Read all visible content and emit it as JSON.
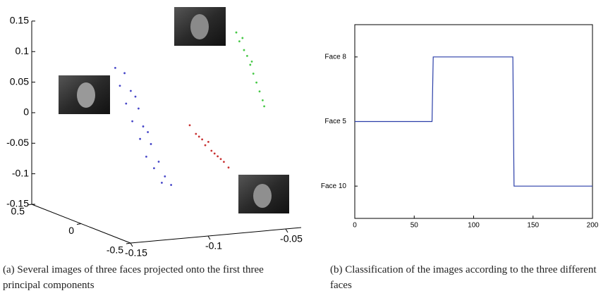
{
  "chart_data": [
    {
      "type": "scatter3d",
      "xlim": [
        -0.15,
        -0.04
      ],
      "xticks": [
        -0.15,
        -0.1,
        -0.05
      ],
      "ylim": [
        -0.5,
        0.5
      ],
      "yticks": [
        -0.5,
        0,
        0.5
      ],
      "zlim": [
        -0.15,
        0.15
      ],
      "zticks": [
        -0.15,
        -0.1,
        -0.05,
        0,
        0.05,
        0.1,
        0.15
      ],
      "series": [
        {
          "color": "#4646c8",
          "x": [
            -0.128,
            -0.122,
            -0.125,
            -0.118,
            -0.121,
            -0.113,
            -0.117,
            -0.11,
            -0.112,
            -0.105,
            -0.108,
            -0.1,
            -0.103,
            -0.096,
            -0.092,
            -0.098,
            -0.115,
            -0.107
          ],
          "y": [
            0,
            0,
            0,
            0,
            0,
            0,
            0,
            0,
            0,
            0,
            0,
            0,
            0,
            0,
            0,
            0,
            0,
            0
          ],
          "z": [
            0.1,
            0.09,
            0.07,
            0.06,
            0.04,
            0.03,
            0.01,
            0,
            -0.02,
            -0.03,
            -0.05,
            -0.06,
            -0.07,
            -0.085,
            -0.1,
            -0.095,
            0.05,
            -0.01
          ]
        },
        {
          "color": "#c83232",
          "x": [
            -0.08,
            -0.076,
            -0.072,
            -0.07,
            -0.066,
            -0.064,
            -0.06,
            -0.058,
            -0.055,
            -0.068,
            -0.062,
            -0.074
          ],
          "y": [
            0,
            0,
            0,
            0,
            0,
            0,
            0,
            0,
            0,
            0,
            0,
            0
          ],
          "z": [
            -0.005,
            -0.02,
            -0.03,
            -0.04,
            -0.05,
            -0.055,
            -0.065,
            -0.07,
            -0.08,
            -0.035,
            -0.06,
            -0.025
          ]
        },
        {
          "color": "#46c846",
          "x": [
            -0.05,
            -0.048,
            -0.045,
            -0.043,
            -0.041,
            -0.039,
            -0.037,
            -0.035,
            -0.033,
            -0.032,
            -0.046,
            -0.04
          ],
          "y": [
            0,
            0,
            0,
            0,
            0,
            0,
            0,
            0,
            0,
            0,
            0,
            0
          ],
          "z": [
            0.14,
            0.125,
            0.11,
            0.1,
            0.085,
            0.07,
            0.055,
            0.04,
            0.025,
            0.015,
            0.13,
            0.09
          ]
        }
      ]
    },
    {
      "type": "line",
      "x": [
        0,
        65,
        66,
        133,
        134,
        200
      ],
      "series": [
        {
          "color": "#2b3fa8",
          "values": [
            2,
            2,
            3,
            3,
            1,
            1
          ]
        }
      ],
      "xlim": [
        0,
        200
      ],
      "xticks": [
        0,
        50,
        100,
        150,
        200
      ],
      "ylim": [
        0.5,
        3.5
      ],
      "yticks": [
        {
          "value": 1,
          "label": "Face 10"
        },
        {
          "value": 2,
          "label": "Face 5"
        },
        {
          "value": 3,
          "label": "Face 8"
        }
      ]
    }
  ],
  "captions": [
    "(a) Several images of three faces projected onto the first three principal components",
    "(b) Classification of the images according to the three different faces"
  ]
}
